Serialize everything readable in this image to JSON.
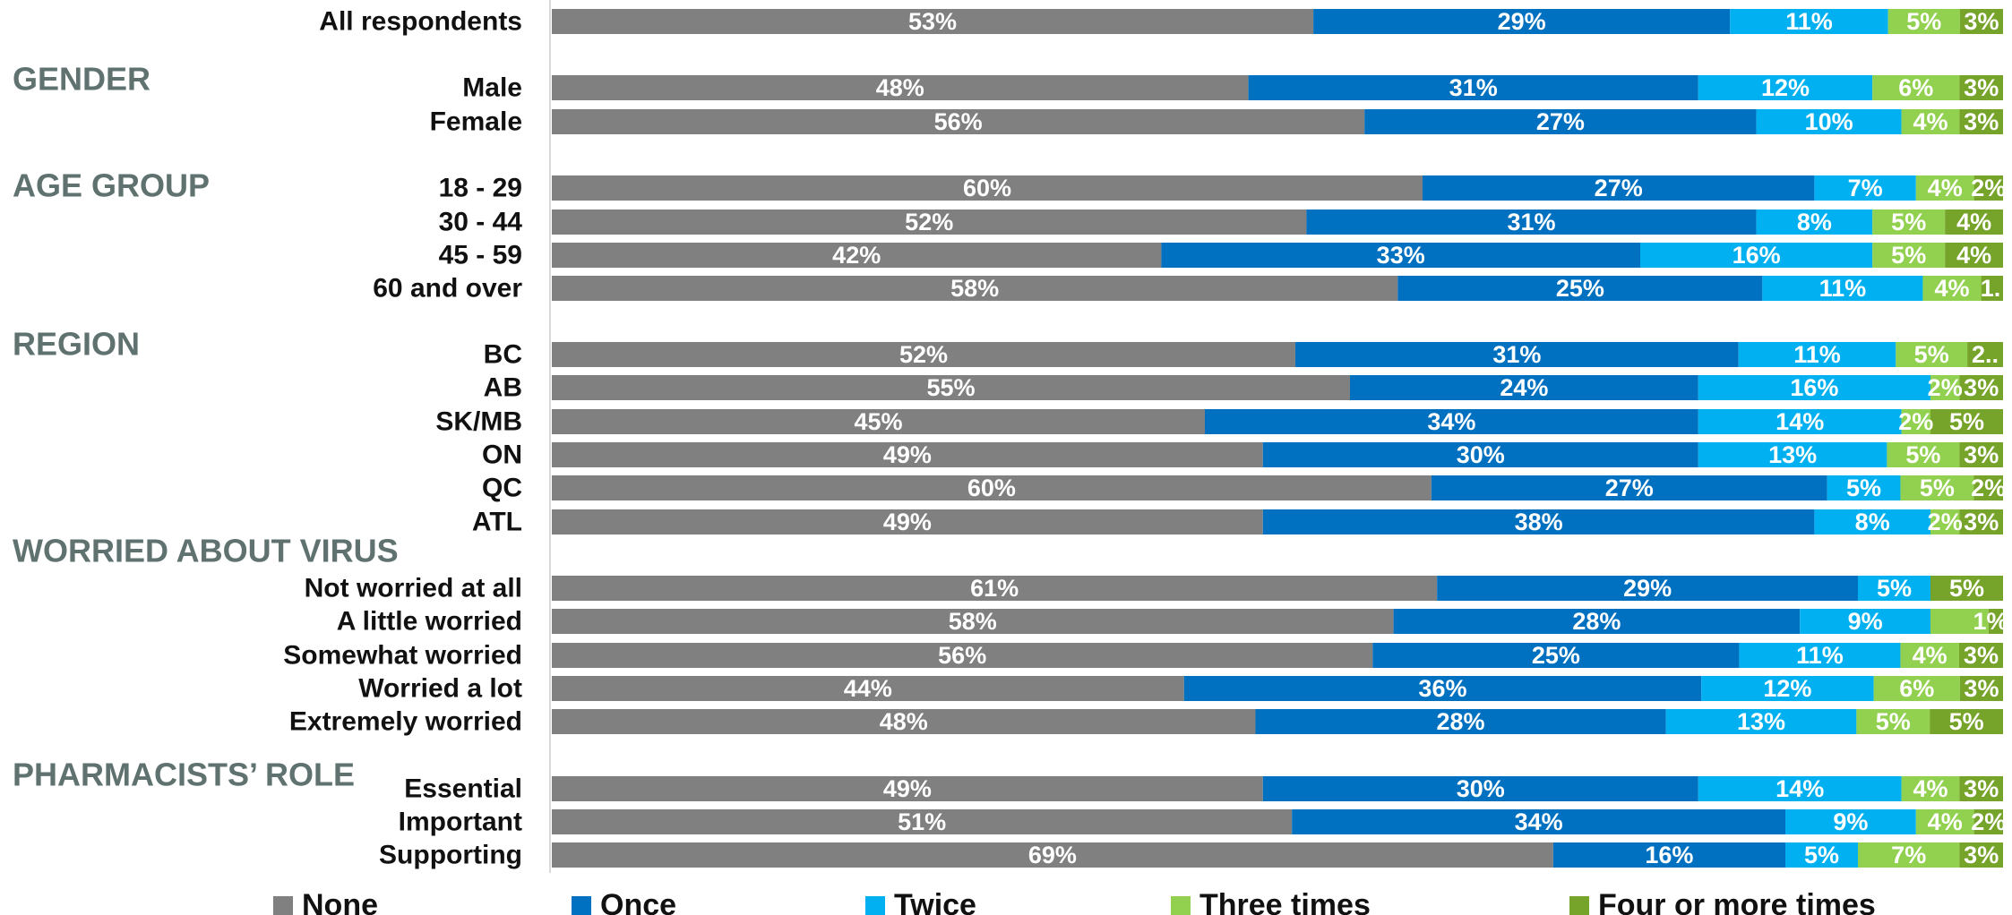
{
  "chart_data": {
    "type": "bar",
    "orientation": "horizontal",
    "stacked": true,
    "value_format": "percent",
    "xlim": [
      0,
      100
    ],
    "grid": false,
    "legend_position": "bottom",
    "series": [
      {
        "name": "None",
        "color": "#808080"
      },
      {
        "name": "Once",
        "color": "#0070c0"
      },
      {
        "name": "Twice",
        "color": "#00b0f0"
      },
      {
        "name": "Three times",
        "color": "#92d050"
      },
      {
        "name": "Four or more times",
        "color": "#76a329"
      }
    ],
    "groups": [
      {
        "title": "",
        "rows": [
          {
            "label": "All respondents",
            "values": [
              53,
              29,
              11,
              5,
              3
            ],
            "labels": [
              "53%",
              "29%",
              "11%",
              "5%",
              "3%"
            ]
          }
        ]
      },
      {
        "title": "GENDER",
        "rows": [
          {
            "label": "Male",
            "values": [
              48,
              31,
              12,
              6,
              3
            ],
            "labels": [
              "48%",
              "31%",
              "12%",
              "6%",
              "3%"
            ]
          },
          {
            "label": "Female",
            "values": [
              56,
              27,
              10,
              4,
              3
            ],
            "labels": [
              "56%",
              "27%",
              "10%",
              "4%",
              "3%"
            ]
          }
        ]
      },
      {
        "title": "AGE GROUP",
        "rows": [
          {
            "label": "18 - 29",
            "values": [
              60,
              27,
              7,
              4,
              2
            ],
            "labels": [
              "60%",
              "27%",
              "7%",
              "4%",
              "2%"
            ]
          },
          {
            "label": "30 - 44",
            "values": [
              52,
              31,
              8,
              5,
              4
            ],
            "labels": [
              "52%",
              "31%",
              "8%",
              "5%",
              "4%"
            ]
          },
          {
            "label": "45 - 59",
            "values": [
              42,
              33,
              16,
              5,
              4
            ],
            "labels": [
              "42%",
              "33%",
              "16%",
              "5%",
              "4%"
            ]
          },
          {
            "label": "60 and over",
            "values": [
              58,
              25,
              11,
              4,
              1.5
            ],
            "labels": [
              "58%",
              "25%",
              "11%",
              "4%",
              "1."
            ]
          }
        ]
      },
      {
        "title": "REGION",
        "rows": [
          {
            "label": "BC",
            "values": [
              52,
              31,
              11,
              5,
              2.5
            ],
            "labels": [
              "52%",
              "31%",
              "11%",
              "5%",
              "2.."
            ]
          },
          {
            "label": "AB",
            "values": [
              55,
              24,
              16,
              2,
              3
            ],
            "labels": [
              "55%",
              "24%",
              "16%",
              "2%",
              "3%"
            ]
          },
          {
            "label": "SK/MB",
            "values": [
              45,
              34,
              14,
              2,
              5
            ],
            "labels": [
              "45%",
              "34%",
              "14%",
              "2%",
              "5%"
            ]
          },
          {
            "label": "ON",
            "values": [
              49,
              30,
              13,
              5,
              3
            ],
            "labels": [
              "49%",
              "30%",
              "13%",
              "5%",
              "3%"
            ]
          },
          {
            "label": "QC",
            "values": [
              60,
              27,
              5,
              5,
              2
            ],
            "labels": [
              "60%",
              "27%",
              "5%",
              "5%",
              "2%"
            ]
          },
          {
            "label": "ATL",
            "values": [
              49,
              38,
              8,
              2,
              3
            ],
            "labels": [
              "49%",
              "38%",
              "8%",
              "2%",
              "3%"
            ]
          }
        ]
      },
      {
        "title": "WORRIED ABOUT VIRUS",
        "rows": [
          {
            "label": "Not worried at all",
            "values": [
              61,
              29,
              5,
              0,
              5
            ],
            "labels": [
              "61%",
              "29%",
              "5%",
              "",
              "5%"
            ]
          },
          {
            "label": "A little worried",
            "values": [
              58,
              28,
              9,
              4,
              1
            ],
            "labels": [
              "58%",
              "28%",
              "9%",
              "",
              "1%"
            ]
          },
          {
            "label": "Somewhat worried",
            "values": [
              56,
              25,
              11,
              4,
              3
            ],
            "labels": [
              "56%",
              "25%",
              "11%",
              "4%",
              "3%"
            ]
          },
          {
            "label": "Worried a lot",
            "values": [
              44,
              36,
              12,
              6,
              3
            ],
            "labels": [
              "44%",
              "36%",
              "12%",
              "6%",
              "3%"
            ]
          },
          {
            "label": "Extremely worried",
            "values": [
              48,
              28,
              13,
              5,
              5
            ],
            "labels": [
              "48%",
              "28%",
              "13%",
              "5%",
              "5%"
            ]
          }
        ]
      },
      {
        "title": "PHARMACISTS’ ROLE",
        "rows": [
          {
            "label": "Essential",
            "values": [
              49,
              30,
              14,
              4,
              3
            ],
            "labels": [
              "49%",
              "30%",
              "14%",
              "4%",
              "3%"
            ]
          },
          {
            "label": "Important",
            "values": [
              51,
              34,
              9,
              4,
              2
            ],
            "labels": [
              "51%",
              "34%",
              "9%",
              "4%",
              "2%"
            ]
          },
          {
            "label": "Supporting",
            "values": [
              69,
              16,
              5,
              7,
              3
            ],
            "labels": [
              "69%",
              "16%",
              "5%",
              "7%",
              "3%"
            ]
          }
        ]
      }
    ]
  }
}
